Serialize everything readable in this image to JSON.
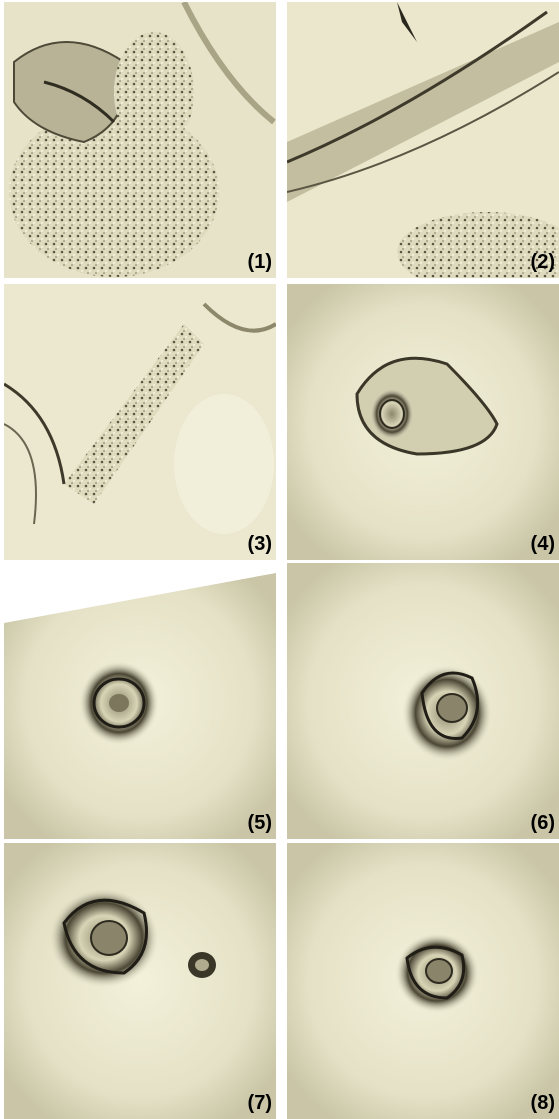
{
  "panels": [
    {
      "label": "(1)"
    },
    {
      "label": "(2)"
    },
    {
      "label": "(3)"
    },
    {
      "label": "(4)"
    },
    {
      "label": "(5)"
    },
    {
      "label": "(6)"
    },
    {
      "label": "(7)"
    },
    {
      "label": "(8)"
    }
  ]
}
